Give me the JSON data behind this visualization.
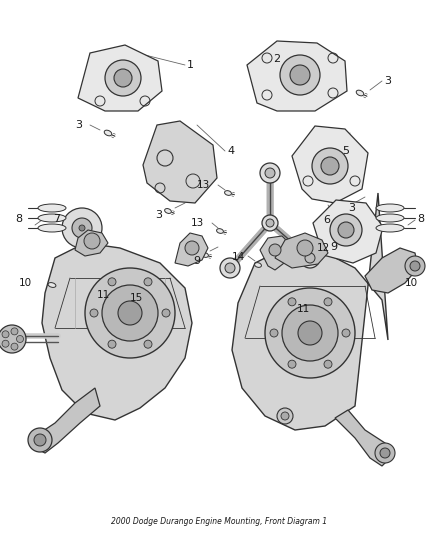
{
  "title": "2000 Dodge Durango Engine Mounting, Front Diagram 1",
  "bg_color": "#ffffff",
  "fig_width": 4.38,
  "fig_height": 5.33,
  "dpi": 100,
  "line_color": "#2a2a2a",
  "label_color": "#1a1a1a",
  "part_fill": "#e8e8e8",
  "part_fill2": "#d4d4d4"
}
